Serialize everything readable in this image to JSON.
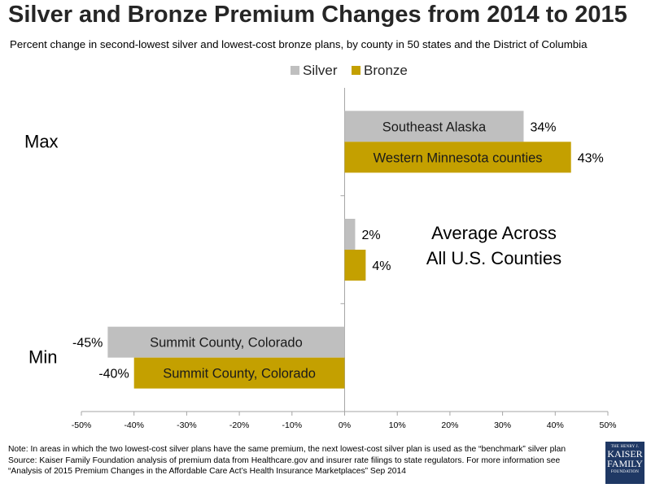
{
  "header": {
    "title": "Silver and Bronze Premium Changes from 2014 to 2015",
    "subtitle": "Percent change in second-lowest silver and lowest-cost bronze plans, by county in 50 states and the District of Columbia"
  },
  "chart_data": {
    "type": "bar",
    "orientation": "horizontal",
    "title": "Silver and Bronze Premium Changes from 2014 to 2015",
    "categories": [
      "Max",
      "Average Across All U.S. Counties",
      "Min"
    ],
    "category_labels": [
      "Max",
      "",
      "Min"
    ],
    "annotation": [
      "Average Across",
      "All U.S. Counties"
    ],
    "series": [
      {
        "name": "Silver",
        "color": "#bfbfbf",
        "values": [
          34,
          2,
          -45
        ],
        "bar_labels": [
          "Southeast Alaska",
          "",
          "Summit County, Colorado"
        ],
        "data_labels": [
          "34%",
          "2%",
          "-45%"
        ]
      },
      {
        "name": "Bronze",
        "color": "#c4a000",
        "values": [
          43,
          4,
          -40
        ],
        "bar_labels": [
          "Western Minnesota counties",
          "",
          "Summit County, Colorado"
        ],
        "data_labels": [
          "43%",
          "4%",
          "-40%"
        ]
      }
    ],
    "xlim": [
      -50,
      50
    ],
    "xticks": [
      "-50%",
      "-40%",
      "-30%",
      "-20%",
      "-10%",
      "0%",
      "10%",
      "20%",
      "30%",
      "40%",
      "50%"
    ],
    "grid": false,
    "legend": "top-center"
  },
  "footer": {
    "notes": [
      "Note: In areas in which the two lowest-cost silver plans have the same premium, the next lowest-cost silver plan is used as the “benchmark” silver plan",
      "Source: Kaiser Family Foundation analysis of premium data from Healthcare.gov and insurer rate filings to state regulators. For more information see",
      "“Analysis of 2015 Premium Changes in the Affordable Care Act’s Health Insurance Marketplaces” Sep 2014"
    ],
    "logo": [
      "THE HENRY J.",
      "KAISER",
      "FAMILY",
      "FOUNDATION"
    ]
  }
}
